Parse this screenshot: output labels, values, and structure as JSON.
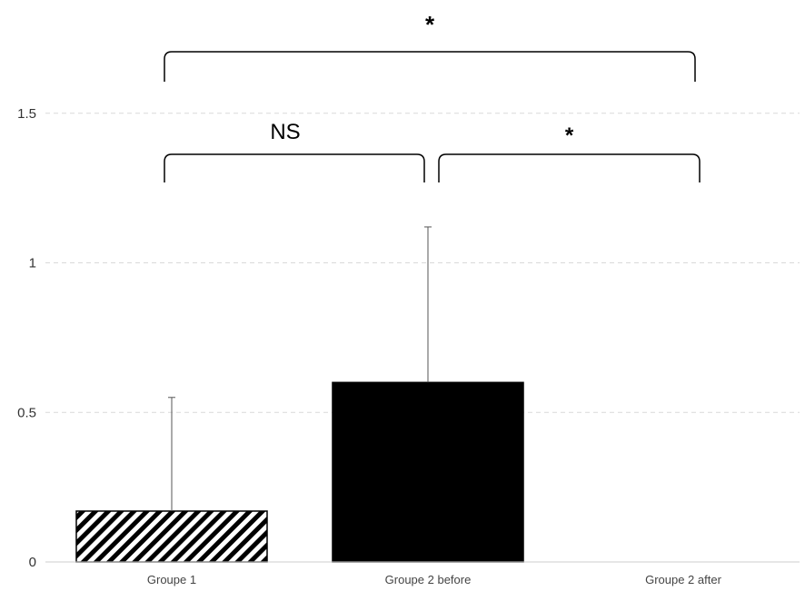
{
  "chart_data": {
    "type": "bar",
    "categories": [
      "Groupe 1",
      "Groupe 2 before",
      "Groupe 2 after"
    ],
    "values": [
      0.17,
      0.6,
      0.0
    ],
    "error_bars": [
      0.38,
      0.52,
      0.0
    ],
    "fills": [
      "hatched",
      "#000000",
      "none"
    ],
    "ylim": [
      0,
      1.8
    ],
    "yticks": [
      0,
      0.5,
      1,
      1.5
    ],
    "ytick_labels": [
      "0",
      "0.5",
      "1",
      "1.5"
    ],
    "grid": true,
    "significance": [
      {
        "from": 0,
        "to": 2,
        "label": "*",
        "level": "top"
      },
      {
        "from": 0,
        "to": 1,
        "label": "NS",
        "level": "lower"
      },
      {
        "from": 1,
        "to": 2,
        "label": "*",
        "level": "lower"
      }
    ]
  }
}
